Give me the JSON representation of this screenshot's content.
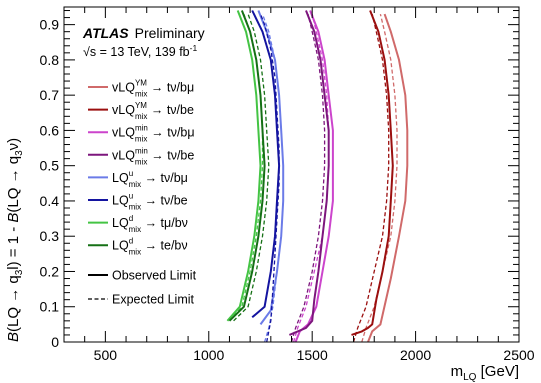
{
  "chart_data": {
    "type": "line",
    "title": "",
    "experiment_label": "ATLAS",
    "status_label": "Preliminary",
    "energy_sqrt": "√s",
    "energy_rest": " = 13 TeV, 139 fb",
    "energy_sup": "-1",
    "xlabel": {
      "main": "m",
      "sub": "LQ",
      "rest": " [GeV]"
    },
    "ylabel": {
      "b1": "B",
      "p1": "(LQ → q",
      "s1": "3",
      "p2": "l) = 1 - ",
      "b2": "B",
      "p3": "(LQ → q",
      "s2": "3",
      "p4": "ν)"
    },
    "xlim": [
      300,
      2500
    ],
    "ylim": [
      0,
      0.95
    ],
    "xticks": [
      {
        "value": 500,
        "label": "500"
      },
      {
        "value": 1000,
        "label": "1000"
      },
      {
        "value": 1500,
        "label": "1500"
      },
      {
        "value": 2000,
        "label": "2000"
      },
      {
        "value": 2500,
        "label": "2500"
      }
    ],
    "yticks": [
      {
        "value": 0,
        "label": "0"
      },
      {
        "value": 0.1,
        "label": "0.1"
      },
      {
        "value": 0.2,
        "label": "0.2"
      },
      {
        "value": 0.3,
        "label": "0.3"
      },
      {
        "value": 0.4,
        "label": "0.4"
      },
      {
        "value": 0.5,
        "label": "0.5"
      },
      {
        "value": 0.6,
        "label": "0.6"
      },
      {
        "value": 0.7,
        "label": "0.7"
      },
      {
        "value": 0.8,
        "label": "0.8"
      },
      {
        "value": 0.9,
        "label": "0.9"
      }
    ],
    "grid": false,
    "legend_position": "top-left",
    "style_legend": [
      {
        "label": "Observed Limit",
        "dash": "solid"
      },
      {
        "label": "Expected Limit",
        "dash": "dashed"
      }
    ],
    "series": [
      {
        "legend": {
          "main": "vLQ",
          "sup": "YM",
          "sub": "mix",
          "decay": " → tν/bμ"
        },
        "color": "#d06a6a",
        "observed": [
          [
            1770,
            0.0
          ],
          [
            1790,
            0.03
          ],
          [
            1830,
            0.05
          ],
          [
            1880,
            0.18
          ],
          [
            1920,
            0.3
          ],
          [
            1950,
            0.4
          ],
          [
            1960,
            0.5
          ],
          [
            1960,
            0.6
          ],
          [
            1950,
            0.7
          ],
          [
            1920,
            0.8
          ],
          [
            1880,
            0.88
          ],
          [
            1850,
            0.93
          ]
        ],
        "expected": [
          [
            1740,
            0.0
          ],
          [
            1760,
            0.04
          ],
          [
            1800,
            0.1
          ],
          [
            1840,
            0.2
          ],
          [
            1880,
            0.3
          ],
          [
            1900,
            0.4
          ],
          [
            1910,
            0.5
          ],
          [
            1910,
            0.6
          ],
          [
            1900,
            0.7
          ],
          [
            1880,
            0.8
          ],
          [
            1850,
            0.88
          ],
          [
            1830,
            0.93
          ]
        ]
      },
      {
        "legend": {
          "main": "vLQ",
          "sup": "YM",
          "sub": "mix",
          "decay": " → tν/be"
        },
        "color": "#9b0f0f",
        "observed": [
          [
            1690,
            0.02
          ],
          [
            1740,
            0.03
          ],
          [
            1770,
            0.04
          ],
          [
            1790,
            0.05
          ],
          [
            1810,
            0.12
          ],
          [
            1840,
            0.2
          ],
          [
            1870,
            0.3
          ],
          [
            1880,
            0.4
          ],
          [
            1890,
            0.5
          ],
          [
            1880,
            0.6
          ],
          [
            1870,
            0.7
          ],
          [
            1850,
            0.8
          ],
          [
            1820,
            0.88
          ],
          [
            1780,
            0.94
          ]
        ],
        "expected": [
          [
            1700,
            0.0
          ],
          [
            1720,
            0.04
          ],
          [
            1760,
            0.1
          ],
          [
            1800,
            0.2
          ],
          [
            1840,
            0.3
          ],
          [
            1860,
            0.4
          ],
          [
            1870,
            0.5
          ],
          [
            1870,
            0.6
          ],
          [
            1860,
            0.7
          ],
          [
            1840,
            0.8
          ],
          [
            1810,
            0.88
          ],
          [
            1790,
            0.93
          ]
        ]
      },
      {
        "legend": {
          "main": "vLQ",
          "sup": "min",
          "sub": "mix",
          "decay": " → tν/bμ"
        },
        "color": "#cc44cc",
        "observed": [
          [
            1420,
            0.0
          ],
          [
            1440,
            0.03
          ],
          [
            1480,
            0.05
          ],
          [
            1520,
            0.1
          ],
          [
            1550,
            0.2
          ],
          [
            1580,
            0.3
          ],
          [
            1600,
            0.4
          ],
          [
            1600,
            0.5
          ],
          [
            1600,
            0.6
          ],
          [
            1580,
            0.7
          ],
          [
            1560,
            0.8
          ],
          [
            1530,
            0.88
          ],
          [
            1490,
            0.94
          ]
        ],
        "expected": [
          [
            1410,
            0.0
          ],
          [
            1430,
            0.04
          ],
          [
            1470,
            0.1
          ],
          [
            1510,
            0.2
          ],
          [
            1550,
            0.3
          ],
          [
            1570,
            0.4
          ],
          [
            1580,
            0.5
          ],
          [
            1580,
            0.6
          ],
          [
            1570,
            0.7
          ],
          [
            1550,
            0.8
          ],
          [
            1520,
            0.88
          ],
          [
            1500,
            0.93
          ]
        ]
      },
      {
        "legend": {
          "main": "vLQ",
          "sup": "min",
          "sub": "mix",
          "decay": " → tν/be"
        },
        "color": "#7d167d",
        "observed": [
          [
            1390,
            0.02
          ],
          [
            1430,
            0.03
          ],
          [
            1470,
            0.04
          ],
          [
            1500,
            0.06
          ],
          [
            1510,
            0.12
          ],
          [
            1530,
            0.2
          ],
          [
            1550,
            0.3
          ],
          [
            1570,
            0.4
          ],
          [
            1580,
            0.5
          ],
          [
            1580,
            0.6
          ],
          [
            1560,
            0.7
          ],
          [
            1540,
            0.8
          ],
          [
            1510,
            0.88
          ],
          [
            1470,
            0.94
          ]
        ],
        "expected": [
          [
            1400,
            0.0
          ],
          [
            1420,
            0.04
          ],
          [
            1460,
            0.1
          ],
          [
            1500,
            0.2
          ],
          [
            1530,
            0.3
          ],
          [
            1550,
            0.4
          ],
          [
            1560,
            0.5
          ],
          [
            1560,
            0.6
          ],
          [
            1550,
            0.7
          ],
          [
            1530,
            0.8
          ],
          [
            1500,
            0.88
          ],
          [
            1480,
            0.93
          ]
        ]
      },
      {
        "legend": {
          "main": "LQ",
          "sup": "u",
          "sub": "mix",
          "decay": " → tν/bμ"
        },
        "color": "#6b7be8",
        "observed": [
          [
            1250,
            0.05
          ],
          [
            1300,
            0.09
          ],
          [
            1330,
            0.2
          ],
          [
            1350,
            0.3
          ],
          [
            1360,
            0.4
          ],
          [
            1360,
            0.5
          ],
          [
            1350,
            0.6
          ],
          [
            1340,
            0.7
          ],
          [
            1320,
            0.8
          ],
          [
            1280,
            0.88
          ],
          [
            1240,
            0.94
          ]
        ],
        "expected": [
          [
            1270,
            0.0
          ],
          [
            1290,
            0.04
          ],
          [
            1310,
            0.1
          ],
          [
            1330,
            0.2
          ],
          [
            1350,
            0.3
          ],
          [
            1360,
            0.4
          ],
          [
            1360,
            0.5
          ],
          [
            1350,
            0.6
          ],
          [
            1340,
            0.7
          ],
          [
            1320,
            0.8
          ],
          [
            1290,
            0.88
          ],
          [
            1260,
            0.93
          ]
        ]
      },
      {
        "legend": {
          "main": "LQ",
          "sup": "u",
          "sub": "mix",
          "decay": " → tν/be"
        },
        "color": "#1414a0",
        "observed": [
          [
            1210,
            0.07
          ],
          [
            1270,
            0.1
          ],
          [
            1300,
            0.2
          ],
          [
            1320,
            0.3
          ],
          [
            1330,
            0.4
          ],
          [
            1340,
            0.5
          ],
          [
            1330,
            0.6
          ],
          [
            1320,
            0.7
          ],
          [
            1300,
            0.8
          ],
          [
            1260,
            0.88
          ],
          [
            1210,
            0.94
          ]
        ],
        "expected": [
          [
            1280,
            0.0
          ],
          [
            1300,
            0.06
          ],
          [
            1310,
            0.15
          ],
          [
            1320,
            0.25
          ],
          [
            1330,
            0.35
          ],
          [
            1340,
            0.45
          ],
          [
            1340,
            0.55
          ],
          [
            1330,
            0.65
          ],
          [
            1320,
            0.75
          ],
          [
            1300,
            0.83
          ],
          [
            1270,
            0.9
          ],
          [
            1250,
            0.93
          ]
        ]
      },
      {
        "legend": {
          "main": "LQ",
          "sup": "d",
          "sub": "mix",
          "decay": " → tμ/bν"
        },
        "color": "#44c444",
        "observed": [
          [
            1090,
            0.06
          ],
          [
            1150,
            0.1
          ],
          [
            1190,
            0.2
          ],
          [
            1220,
            0.3
          ],
          [
            1240,
            0.4
          ],
          [
            1250,
            0.5
          ],
          [
            1240,
            0.6
          ],
          [
            1230,
            0.7
          ],
          [
            1210,
            0.8
          ],
          [
            1180,
            0.88
          ],
          [
            1140,
            0.94
          ]
        ],
        "expected": [
          [
            1100,
            0.06
          ],
          [
            1160,
            0.1
          ],
          [
            1200,
            0.2
          ],
          [
            1230,
            0.3
          ],
          [
            1250,
            0.4
          ],
          [
            1260,
            0.5
          ],
          [
            1260,
            0.6
          ],
          [
            1250,
            0.7
          ],
          [
            1230,
            0.8
          ],
          [
            1200,
            0.88
          ],
          [
            1170,
            0.93
          ]
        ]
      },
      {
        "legend": {
          "main": "LQ",
          "sup": "d",
          "sub": "mix",
          "decay": " → te/bν"
        },
        "color": "#157015",
        "observed": [
          [
            1100,
            0.06
          ],
          [
            1170,
            0.1
          ],
          [
            1210,
            0.2
          ],
          [
            1240,
            0.3
          ],
          [
            1260,
            0.4
          ],
          [
            1270,
            0.5
          ],
          [
            1260,
            0.6
          ],
          [
            1250,
            0.7
          ],
          [
            1230,
            0.8
          ],
          [
            1200,
            0.88
          ],
          [
            1160,
            0.94
          ]
        ],
        "expected": [
          [
            1120,
            0.06
          ],
          [
            1190,
            0.1
          ],
          [
            1230,
            0.2
          ],
          [
            1260,
            0.3
          ],
          [
            1280,
            0.4
          ],
          [
            1290,
            0.5
          ],
          [
            1280,
            0.6
          ],
          [
            1270,
            0.7
          ],
          [
            1250,
            0.8
          ],
          [
            1220,
            0.88
          ],
          [
            1190,
            0.93
          ]
        ]
      }
    ]
  }
}
